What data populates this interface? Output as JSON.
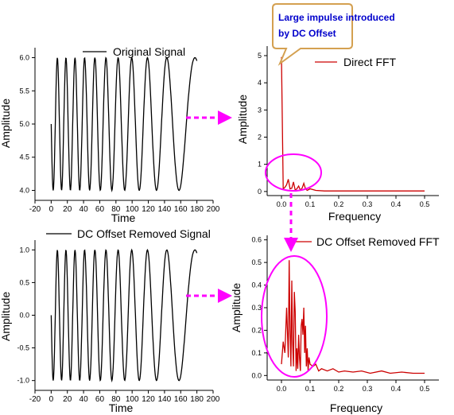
{
  "chart_data": [
    {
      "type": "line",
      "legend": "Original Signal",
      "legend_position": "top-center",
      "xlabel": "Time",
      "ylabel": "Amplitude",
      "xlim": [
        -20,
        200
      ],
      "ylim": [
        3.85,
        6.15
      ],
      "xticks": [
        -20,
        0,
        20,
        40,
        60,
        80,
        100,
        120,
        140,
        160,
        180,
        200
      ],
      "yticks": [
        4.0,
        4.5,
        5.0,
        5.5,
        6.0
      ],
      "ytick_labels": [
        "4.0",
        "4.5",
        "5.0",
        "5.5",
        "6.0"
      ],
      "offset": 5,
      "t_range": [
        0,
        180
      ],
      "oscillation": "chirp, period growing from ~10 to ~50 time units",
      "series_color": "#000000"
    },
    {
      "type": "line",
      "legend": "Direct FFT",
      "legend_position": "top-right",
      "xlabel": "Frequency",
      "ylabel": "Amplitude",
      "xlim": [
        -0.05,
        0.55
      ],
      "ylim": [
        -0.15,
        5.35
      ],
      "xticks": [
        0.0,
        0.1,
        0.2,
        0.3,
        0.4,
        0.5
      ],
      "xtick_labels": [
        "0.0",
        "0.1",
        "0.2",
        "0.3",
        "0.4",
        "0.5"
      ],
      "yticks": [
        0,
        1,
        2,
        3,
        4,
        5
      ],
      "series_color": "#cc0000",
      "x": [
        0.0,
        0.006,
        0.012,
        0.018,
        0.024,
        0.03,
        0.036,
        0.042,
        0.048,
        0.054,
        0.06,
        0.066,
        0.072,
        0.078,
        0.084,
        0.09,
        0.1,
        0.12,
        0.15,
        0.2,
        0.3,
        0.4,
        0.5
      ],
      "y": [
        4.95,
        0.1,
        0.15,
        0.25,
        0.45,
        0.1,
        0.12,
        0.35,
        0.05,
        0.1,
        0.2,
        0.05,
        0.12,
        0.3,
        0.1,
        0.04,
        0.1,
        0.04,
        0.02,
        0.02,
        0.02,
        0.02,
        0.02
      ]
    },
    {
      "type": "line",
      "legend": "DC Offset Removed Signal",
      "legend_position": "top-center",
      "xlabel": "Time",
      "ylabel": "Amplitude",
      "xlim": [
        -20,
        200
      ],
      "ylim": [
        -1.15,
        1.15
      ],
      "xticks": [
        -20,
        0,
        20,
        40,
        60,
        80,
        100,
        120,
        140,
        160,
        180,
        200
      ],
      "yticks": [
        -1.0,
        -0.5,
        0.0,
        0.5,
        1.0
      ],
      "ytick_labels": [
        "-1.0",
        "-0.5",
        "0.0",
        "0.5",
        "1.0"
      ],
      "offset": 0,
      "t_range": [
        0,
        180
      ],
      "oscillation": "chirp, period growing from ~10 to ~50 time units",
      "series_color": "#000000"
    },
    {
      "type": "line",
      "legend": "DC Offset Removed FFT",
      "legend_position": "top-right",
      "xlabel": "Frequency",
      "ylabel": "Amplitude",
      "xlim": [
        -0.05,
        0.55
      ],
      "ylim": [
        -0.02,
        0.62
      ],
      "xticks": [
        0.0,
        0.1,
        0.2,
        0.3,
        0.4,
        0.5
      ],
      "xtick_labels": [
        "0.0",
        "0.1",
        "0.2",
        "0.3",
        "0.4",
        "0.5"
      ],
      "yticks": [
        0.0,
        0.1,
        0.2,
        0.3,
        0.4,
        0.5,
        0.6
      ],
      "ytick_labels": [
        "0.0",
        "0.1",
        "0.2",
        "0.3",
        "0.4",
        "0.5",
        "0.6"
      ],
      "series_color": "#cc0000",
      "x": [
        0.0,
        0.006,
        0.012,
        0.018,
        0.024,
        0.027,
        0.03,
        0.033,
        0.036,
        0.039,
        0.042,
        0.045,
        0.048,
        0.051,
        0.054,
        0.057,
        0.06,
        0.063,
        0.066,
        0.069,
        0.072,
        0.075,
        0.078,
        0.081,
        0.084,
        0.087,
        0.09,
        0.093,
        0.096,
        0.1,
        0.11,
        0.12,
        0.13,
        0.14,
        0.16,
        0.18,
        0.2,
        0.22,
        0.25,
        0.28,
        0.31,
        0.35,
        0.38,
        0.42,
        0.46,
        0.5
      ],
      "y": [
        0.05,
        0.15,
        0.1,
        0.3,
        0.08,
        0.51,
        0.2,
        0.04,
        0.42,
        0.15,
        0.04,
        0.37,
        0.28,
        0.02,
        0.12,
        0.03,
        0.18,
        0.08,
        0.02,
        0.22,
        0.25,
        0.18,
        0.3,
        0.1,
        0.22,
        0.04,
        0.12,
        0.02,
        0.08,
        0.05,
        0.04,
        0.05,
        0.02,
        0.03,
        0.02,
        0.03,
        0.015,
        0.02,
        0.015,
        0.02,
        0.01,
        0.02,
        0.01,
        0.015,
        0.01,
        0.01
      ]
    }
  ],
  "callout": {
    "lines": [
      "Large impulse introduced",
      "by DC Offset"
    ],
    "text_color": "#0000cc",
    "border_color": "#d4a050"
  },
  "arrow_color": "#ff00ff",
  "circle_color": "#ff00ff"
}
